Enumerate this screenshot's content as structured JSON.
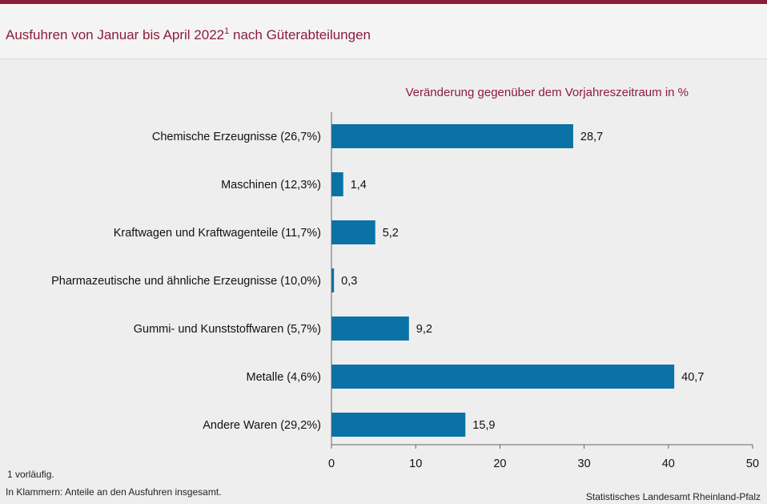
{
  "header": {
    "title": "Ausfuhren von Januar bis April 2022",
    "title_sup": "1",
    "title_suffix": "nach Güterabteilungen"
  },
  "chart_data": {
    "type": "bar",
    "orientation": "horizontal",
    "subtitle": "Veränderung gegenüber dem Vorjahreszeitraum in %",
    "categories": [
      "Chemische Erzeugnisse (26,7%)",
      "Maschinen (12,3%)",
      "Kraftwagen und Kraftwagenteile (11,7%)",
      "Pharmazeutische und ähnliche Erzeugnisse (10,0%)",
      "Gummi- und Kunststoffwaren (5,7%)",
      "Metalle (4,6%)",
      "Andere Waren (29,2%)"
    ],
    "values": [
      28.7,
      1.4,
      5.2,
      0.3,
      9.2,
      40.7,
      15.9
    ],
    "value_labels": [
      "28,7",
      "1,4",
      "5,2",
      "0,3",
      "9,2",
      "40,7",
      "15,9"
    ],
    "xlim": [
      0,
      50
    ],
    "xticks": [
      0,
      10,
      20,
      30,
      40,
      50
    ],
    "xtick_labels": [
      "0",
      "10",
      "20",
      "30",
      "40",
      "50"
    ],
    "bar_color": "#0a72a6",
    "grid": false
  },
  "footer": {
    "footnote": "1 vorläufig.",
    "note": "In Klammern: Anteile an den Ausfuhren insgesamt.",
    "source": "Statistisches Landesamt Rheinland-Pfalz"
  },
  "colors": {
    "accent": "#8b1d3b",
    "bar": "#0a72a6",
    "background": "#eeeeee"
  }
}
